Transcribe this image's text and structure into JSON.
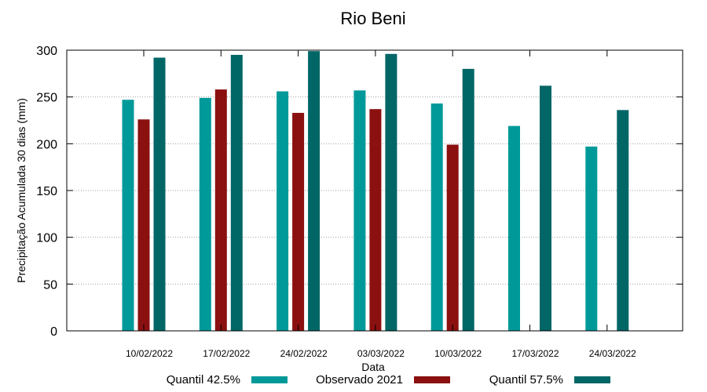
{
  "chart_data": {
    "type": "bar",
    "title": "Rio Beni",
    "xlabel": "Data",
    "ylabel": "Precipitação Acumulada 30 dias (mm)",
    "ylim": [
      0,
      300
    ],
    "yticks": [
      0,
      50,
      100,
      150,
      200,
      250,
      300
    ],
    "grid": true,
    "legend_position": "bottom",
    "categories": [
      "10/02/2022",
      "17/02/2022",
      "24/02/2022",
      "03/03/2022",
      "10/03/2022",
      "17/03/2022",
      "24/03/2022"
    ],
    "series": [
      {
        "name": "Quantil 42.5%",
        "color": "#009999",
        "values": [
          247,
          249,
          256,
          257,
          243,
          219,
          197
        ]
      },
      {
        "name": "Observado 2021",
        "color": "#8b1010",
        "values": [
          226,
          258,
          233,
          237,
          199,
          null,
          null
        ]
      },
      {
        "name": "Quantil 57.5%",
        "color": "#006666",
        "values": [
          292,
          295,
          299,
          296,
          280,
          262,
          236
        ]
      }
    ]
  }
}
